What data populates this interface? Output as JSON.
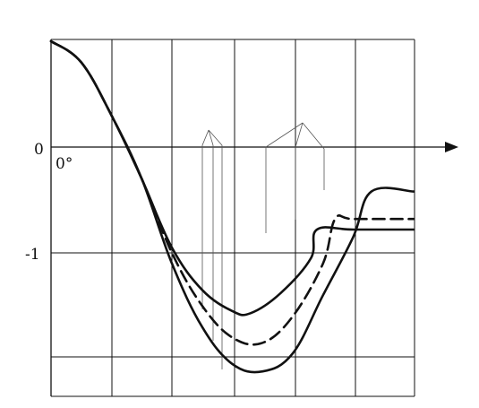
{
  "chart_data": {
    "type": "line",
    "x_tick_labels": [
      "0°"
    ],
    "y_tick_labels": [
      "0",
      "-1"
    ],
    "ylim": [
      -2.2,
      1
    ],
    "grid": true,
    "series": [
      {
        "style": "solid",
        "points": [
          [
            0,
            1
          ],
          [
            0.5,
            0.8
          ],
          [
            1,
            0.3
          ],
          [
            1.5,
            -0.3
          ],
          [
            2,
            -0.95
          ],
          [
            2.5,
            -1.35
          ],
          [
            3,
            -1.55
          ],
          [
            3.3,
            -1.57
          ],
          [
            3.8,
            -1.38
          ],
          [
            4.3,
            -1.05
          ],
          [
            4.4,
            -0.78
          ],
          [
            5,
            -0.78
          ],
          [
            6,
            -0.78
          ]
        ]
      },
      {
        "style": "dashed",
        "points": [
          [
            0,
            1
          ],
          [
            0.5,
            0.8
          ],
          [
            1,
            0.3
          ],
          [
            1.5,
            -0.3
          ],
          [
            2,
            -1.0
          ],
          [
            2.5,
            -1.5
          ],
          [
            3,
            -1.8
          ],
          [
            3.5,
            -1.85
          ],
          [
            4,
            -1.6
          ],
          [
            4.5,
            -1.1
          ],
          [
            4.7,
            -0.68
          ],
          [
            5,
            -0.68
          ],
          [
            6,
            -0.68
          ]
        ]
      },
      {
        "style": "solid",
        "points": [
          [
            0,
            1
          ],
          [
            0.5,
            0.8
          ],
          [
            1,
            0.3
          ],
          [
            1.5,
            -0.3
          ],
          [
            2,
            -1.1
          ],
          [
            2.5,
            -1.7
          ],
          [
            3,
            -2.05
          ],
          [
            3.5,
            -2.12
          ],
          [
            4,
            -1.95
          ],
          [
            4.5,
            -1.4
          ],
          [
            5,
            -0.85
          ],
          [
            5.3,
            -0.42
          ],
          [
            6,
            -0.42
          ]
        ]
      }
    ]
  }
}
